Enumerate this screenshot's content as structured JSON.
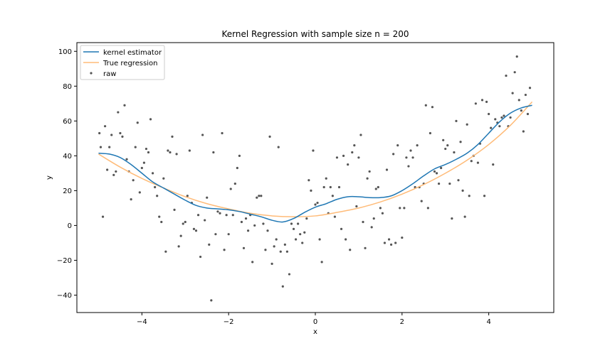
{
  "chart_data": {
    "type": "scatter",
    "title": "Kernel Regression with sample size n = 200",
    "xlabel": "x",
    "ylabel": "y",
    "xlim": [
      -5.5,
      5.5
    ],
    "ylim": [
      -50,
      105
    ],
    "xticks": [
      -4,
      -2,
      0,
      2,
      4
    ],
    "xtick_labels": [
      "−4",
      "−2",
      "0",
      "2",
      "4"
    ],
    "yticks": [
      -40,
      -20,
      0,
      20,
      40,
      60,
      80,
      100
    ],
    "ytick_labels": [
      "−40",
      "−20",
      "0",
      "20",
      "40",
      "60",
      "80",
      "100"
    ],
    "grid": false,
    "legend_position": "top-left",
    "colors": {
      "kernel": "#1f77b4",
      "true": "#ffbb78",
      "raw": "#555555"
    },
    "series": [
      {
        "name": "kernel estimator",
        "kind": "line",
        "x": [
          -5.0,
          -4.75,
          -4.5,
          -4.25,
          -4.0,
          -3.75,
          -3.5,
          -3.25,
          -3.0,
          -2.75,
          -2.5,
          -2.25,
          -2.0,
          -1.75,
          -1.5,
          -1.25,
          -1.0,
          -0.75,
          -0.5,
          -0.25,
          0.0,
          0.25,
          0.5,
          0.75,
          1.0,
          1.25,
          1.5,
          1.75,
          2.0,
          2.25,
          2.5,
          2.75,
          3.0,
          3.25,
          3.5,
          3.75,
          4.0,
          4.25,
          4.5,
          4.75,
          5.0
        ],
        "y": [
          41.5,
          41.0,
          39.0,
          35.0,
          30.0,
          25.0,
          21.5,
          18.0,
          14.5,
          11.5,
          10.0,
          9.5,
          9.0,
          8.0,
          6.5,
          5.0,
          3.0,
          2.0,
          4.0,
          7.5,
          10.5,
          12.5,
          15.0,
          16.5,
          16.5,
          16.0,
          16.0,
          17.0,
          20.0,
          24.0,
          28.5,
          32.5,
          35.0,
          38.0,
          41.5,
          46.5,
          53.0,
          59.5,
          64.5,
          67.5,
          69.0
        ]
      },
      {
        "name": "True regression",
        "kind": "line",
        "x": [
          -5.0,
          -4.5,
          -4.0,
          -3.5,
          -3.0,
          -2.5,
          -2.0,
          -1.5,
          -1.0,
          -0.5,
          0.0,
          0.5,
          1.0,
          1.5,
          2.0,
          2.5,
          3.0,
          3.5,
          4.0,
          4.5,
          5.0
        ],
        "y": [
          41.0,
          33.5,
          27.0,
          21.5,
          16.5,
          12.5,
          9.5,
          7.0,
          5.5,
          5.0,
          5.5,
          7.5,
          10.0,
          13.5,
          18.0,
          23.5,
          30.0,
          37.5,
          46.5,
          57.5,
          71.0
        ]
      },
      {
        "name": "raw",
        "kind": "scatter",
        "x": [
          -4.98,
          -4.95,
          -4.9,
          -4.85,
          -4.8,
          -4.75,
          -4.7,
          -4.65,
          -4.6,
          -4.55,
          -4.5,
          -4.45,
          -4.4,
          -4.35,
          -4.3,
          -4.25,
          -4.2,
          -4.15,
          -4.1,
          -4.05,
          -4.0,
          -3.95,
          -3.9,
          -3.85,
          -3.8,
          -3.75,
          -3.7,
          -3.65,
          -3.6,
          -3.55,
          -3.5,
          -3.45,
          -3.4,
          -3.35,
          -3.3,
          -3.25,
          -3.2,
          -3.15,
          -3.1,
          -3.05,
          -3.0,
          -2.95,
          -2.9,
          -2.85,
          -2.8,
          -2.75,
          -2.7,
          -2.65,
          -2.6,
          -2.55,
          -2.5,
          -2.45,
          -2.4,
          -2.35,
          -2.3,
          -2.25,
          -2.2,
          -2.15,
          -2.1,
          -2.05,
          -2.0,
          -1.95,
          -1.9,
          -1.85,
          -1.8,
          -1.75,
          -1.7,
          -1.65,
          -1.6,
          -1.55,
          -1.5,
          -1.45,
          -1.4,
          -1.35,
          -1.3,
          -1.25,
          -1.2,
          -1.15,
          -1.1,
          -1.05,
          -1.0,
          -0.95,
          -0.9,
          -0.85,
          -0.8,
          -0.75,
          -0.7,
          -0.65,
          -0.6,
          -0.55,
          -0.5,
          -0.45,
          -0.4,
          -0.35,
          -0.3,
          -0.25,
          -0.2,
          -0.15,
          -0.1,
          -0.05,
          0.0,
          0.05,
          0.1,
          0.15,
          0.2,
          0.25,
          0.3,
          0.35,
          0.4,
          0.45,
          0.5,
          0.55,
          0.6,
          0.65,
          0.7,
          0.75,
          0.8,
          0.85,
          0.9,
          0.95,
          1.0,
          1.05,
          1.1,
          1.15,
          1.2,
          1.25,
          1.3,
          1.35,
          1.4,
          1.45,
          1.5,
          1.55,
          1.6,
          1.65,
          1.7,
          1.75,
          1.8,
          1.85,
          1.9,
          1.95,
          2.0,
          2.05,
          2.1,
          2.15,
          2.2,
          2.25,
          2.3,
          2.35,
          2.4,
          2.45,
          2.5,
          2.55,
          2.6,
          2.65,
          2.7,
          2.75,
          2.8,
          2.85,
          2.9,
          2.95,
          3.0,
          3.05,
          3.1,
          3.15,
          3.2,
          3.25,
          3.3,
          3.35,
          3.4,
          3.45,
          3.5,
          3.55,
          3.6,
          3.65,
          3.7,
          3.75,
          3.8,
          3.85,
          3.9,
          3.95,
          4.0,
          4.05,
          4.1,
          4.15,
          4.2,
          4.25,
          4.3,
          4.35,
          4.4,
          4.45,
          4.5,
          4.55,
          4.6,
          4.65,
          4.7,
          4.75,
          4.8,
          4.85,
          4.9,
          4.95
        ],
        "y": [
          53,
          45,
          5,
          57,
          32,
          45,
          52,
          29,
          31,
          65,
          53,
          51,
          69,
          38,
          31,
          15,
          26,
          45,
          59,
          19,
          33,
          36,
          44,
          42,
          61,
          30,
          22,
          17,
          5,
          2,
          27,
          -15,
          43,
          42,
          51,
          9,
          41,
          -12,
          -6,
          1,
          2,
          17,
          43,
          13,
          -2,
          -3,
          6,
          -18,
          52,
          3,
          16,
          -11,
          -43,
          42,
          -5,
          8,
          7,
          53,
          -14,
          6,
          -5,
          21,
          6,
          24,
          33,
          40,
          2,
          -13,
          4,
          -3,
          6,
          -21,
          0,
          16,
          17,
          17,
          1,
          -14,
          -3,
          51,
          -22,
          -12,
          -8,
          45,
          -15,
          -35,
          -11,
          -15,
          -28,
          1,
          -2,
          -8,
          1,
          -5,
          -10,
          -4,
          4,
          26,
          20,
          43,
          12,
          13,
          -8,
          -21,
          22,
          27,
          7,
          22,
          17,
          5,
          39,
          22,
          -2,
          40,
          -8,
          35,
          -14,
          42,
          46,
          11,
          39,
          52,
          2,
          -13,
          27,
          31,
          -1,
          4,
          21,
          22,
          10,
          7,
          -10,
          32,
          -8,
          -11,
          41,
          -10,
          46,
          10,
          -7,
          10,
          39,
          34,
          43,
          39,
          22,
          46,
          22,
          14,
          24,
          69,
          10,
          53,
          68,
          31,
          30,
          24,
          33,
          49,
          44,
          46,
          24,
          4,
          42,
          60,
          26,
          48,
          20,
          5,
          58,
          17,
          37,
          40,
          70,
          36,
          47,
          72,
          17,
          71,
          64,
          56,
          35,
          61,
          59,
          57,
          62,
          63,
          86,
          57,
          62,
          76,
          88,
          97,
          72,
          66,
          54,
          75,
          64,
          79
        ]
      }
    ]
  }
}
